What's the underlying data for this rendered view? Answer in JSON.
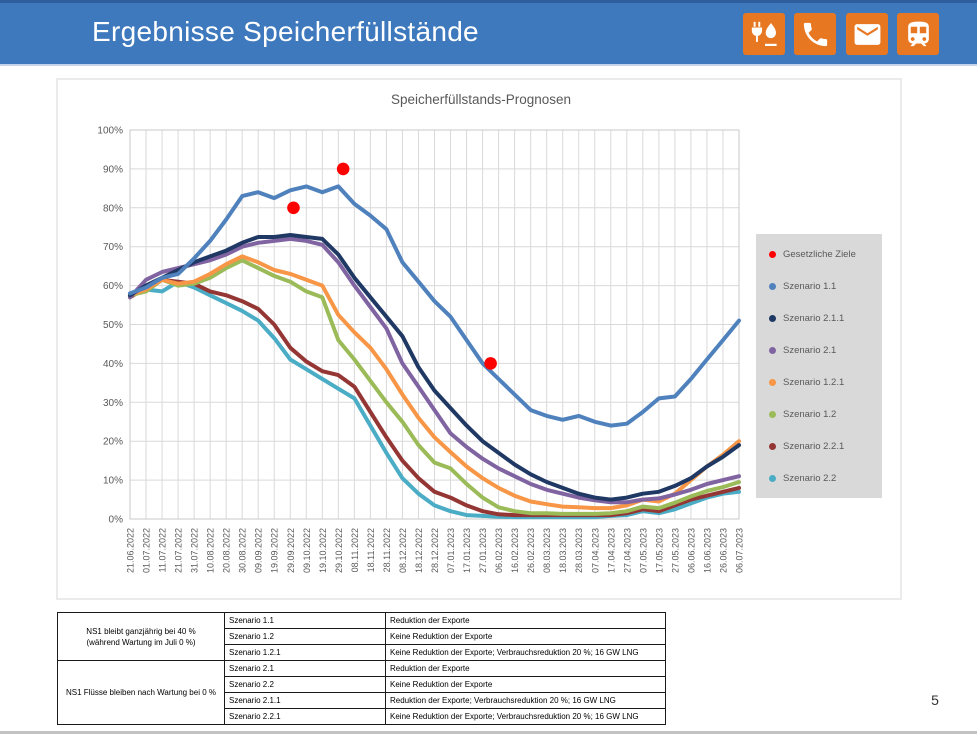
{
  "header": {
    "title": "Ergebnisse Speicherfüllstände",
    "bar_color": "#3E79BE",
    "icon_bg_color": "#E87722",
    "icons": [
      "energy-plug-flame-icon",
      "phone-icon",
      "mail-icon",
      "train-icon"
    ]
  },
  "chart_data": {
    "type": "line",
    "title": "Speicherfüllstands-Prognosen",
    "xlabel": "",
    "ylabel": "",
    "ylim": [
      0,
      100
    ],
    "grid": true,
    "legend_position": "right",
    "y_ticks": [
      "0%",
      "10%",
      "20%",
      "30%",
      "40%",
      "50%",
      "60%",
      "70%",
      "80%",
      "90%",
      "100%"
    ],
    "x": [
      "21.06.2022",
      "01.07.2022",
      "11.07.2022",
      "21.07.2022",
      "31.07.2022",
      "10.08.2022",
      "20.08.2022",
      "30.08.2022",
      "09.09.2022",
      "19.09.2022",
      "29.09.2022",
      "09.10.2022",
      "19.10.2022",
      "29.10.2022",
      "08.11.2022",
      "18.11.2022",
      "28.11.2022",
      "08.12.2022",
      "18.12.2022",
      "28.12.2022",
      "07.01.2023",
      "17.01.2023",
      "27.01.2023",
      "06.02.2023",
      "16.02.2023",
      "26.02.2023",
      "08.03.2023",
      "18.03.2023",
      "28.03.2023",
      "07.04.2023",
      "17.04.2023",
      "27.04.2023",
      "07.05.2023",
      "17.05.2023",
      "27.05.2023",
      "06.06.2023",
      "16.06.2023",
      "26.06.2023",
      "06.07.2023"
    ],
    "series": [
      {
        "name": "Szenario 1.1",
        "color": "#4F81BD",
        "values": [
          58,
          59.5,
          62,
          63,
          67,
          71.5,
          77,
          83,
          84,
          82.5,
          84.5,
          85.5,
          84,
          85.5,
          81,
          78,
          74.5,
          66,
          61,
          56,
          52,
          46,
          40,
          36,
          32,
          28,
          26.5,
          25.5,
          26.5,
          25,
          24,
          24.5,
          27.5,
          31,
          31.5,
          36,
          41,
          46,
          51
        ]
      },
      {
        "name": "Szenario 2.1.1",
        "color": "#1F3864",
        "values": [
          57.5,
          60,
          62,
          64,
          66,
          67.5,
          69,
          71,
          72.5,
          72.5,
          73,
          72.5,
          72,
          68,
          62,
          57,
          52,
          47,
          39,
          33,
          28.5,
          24,
          20,
          17,
          14,
          11.5,
          9.5,
          8,
          6.5,
          5.5,
          5,
          5.5,
          6.5,
          7,
          8.5,
          10.5,
          13.5,
          16,
          19
        ]
      },
      {
        "name": "Szenario 2.1",
        "color": "#8064A2",
        "values": [
          57,
          61.5,
          63.5,
          64.5,
          65.5,
          66.5,
          68,
          70,
          71,
          71.5,
          72,
          71.5,
          70.5,
          66,
          60,
          54.5,
          49,
          40,
          34,
          28,
          22,
          18.5,
          15.5,
          13,
          11,
          9,
          7.5,
          6.5,
          5.5,
          4.8,
          4.3,
          4.3,
          5,
          5.3,
          6.3,
          7.5,
          9,
          10,
          11
        ]
      },
      {
        "name": "Szenario 1.2.1",
        "color": "#F79646",
        "values": [
          57.5,
          59,
          61.5,
          60.5,
          61,
          63,
          65.5,
          67.5,
          66,
          64,
          63,
          61.5,
          60,
          52.5,
          48,
          44,
          38.5,
          32,
          26,
          21,
          17.2,
          13.5,
          10.5,
          8,
          6,
          4.5,
          3.8,
          3.2,
          3,
          2.8,
          2.8,
          3.5,
          5,
          4.5,
          6.5,
          10,
          13.5,
          16.5,
          20
        ]
      },
      {
        "name": "Szenario 1.2",
        "color": "#9BBB59",
        "values": [
          57.5,
          58.5,
          61.5,
          60,
          60.5,
          62,
          64.5,
          66.5,
          64.5,
          62.5,
          61,
          58.5,
          57,
          46,
          41,
          35.5,
          30,
          25,
          19,
          14.5,
          13,
          9,
          5.5,
          3,
          2,
          1.5,
          1.5,
          1.3,
          1.3,
          1.3,
          1.5,
          2,
          3.2,
          2.8,
          4.2,
          5.8,
          7.2,
          8.2,
          9.5
        ]
      },
      {
        "name": "Szenario 2.2.1",
        "color": "#943634",
        "values": [
          57,
          59.5,
          61.5,
          61,
          60.5,
          58.5,
          57.5,
          56,
          54,
          50,
          44,
          40.5,
          38,
          37,
          34,
          27.5,
          21,
          15,
          10.5,
          7,
          5.5,
          3.5,
          2,
          1.2,
          1,
          1,
          1,
          1,
          1,
          1,
          1,
          1.5,
          2.5,
          2,
          3.5,
          5,
          6,
          7,
          8
        ]
      },
      {
        "name": "Szenario 2.2",
        "color": "#4BACC6",
        "values": [
          57.5,
          59,
          58.5,
          61,
          59.5,
          57.5,
          55.5,
          53.5,
          51,
          46.5,
          41,
          38.5,
          36,
          33.5,
          31,
          24,
          17,
          10.5,
          6.5,
          3.5,
          2,
          1,
          0.8,
          0.6,
          0.5,
          0.5,
          0.5,
          0.5,
          0.5,
          0.5,
          0.8,
          1,
          2,
          1.5,
          2.5,
          4,
          5.5,
          6.5,
          7
        ]
      }
    ],
    "targets": {
      "name": "Gesetzliche Ziele",
      "color": "#FF0000",
      "points": [
        {
          "date": "01.10.2022",
          "x_index": 10.2,
          "value": 80
        },
        {
          "date": "01.11.2022",
          "x_index": 13.3,
          "value": 90
        },
        {
          "date": "01.02.2023",
          "x_index": 22.5,
          "value": 40
        }
      ]
    },
    "legend": [
      {
        "label": "Gesetzliche Ziele",
        "color": "#FF0000"
      },
      {
        "label": "Szenario 1.1",
        "color": "#4F81BD"
      },
      {
        "label": "Szenario 2.1.1",
        "color": "#1F3864"
      },
      {
        "label": "Szenario 2.1",
        "color": "#8064A2"
      },
      {
        "label": "Szenario 1.2.1",
        "color": "#F79646"
      },
      {
        "label": "Szenario 1.2",
        "color": "#9BBB59"
      },
      {
        "label": "Szenario 2.2.1",
        "color": "#943634"
      },
      {
        "label": "Szenario 2.2",
        "color": "#4BACC6"
      }
    ]
  },
  "table": {
    "groups": [
      {
        "label": "NS1 bleibt ganzjährig bei 40 %\n(während Wartung im Juli 0 %)",
        "rows": [
          {
            "scenario": "Szenario 1.1",
            "description": "Reduktion der Exporte"
          },
          {
            "scenario": "Szenario 1.2",
            "description": "Keine Reduktion der Exporte"
          },
          {
            "scenario": "Szenario 1.2.1",
            "description": "Keine Reduktion der Exporte; Verbrauchsreduktion 20 %; 16 GW LNG"
          }
        ]
      },
      {
        "label": "NS1 Flüsse bleiben nach Wartung bei 0 %",
        "rows": [
          {
            "scenario": "Szenario 2.1",
            "description": "Reduktion der Exporte"
          },
          {
            "scenario": "Szenario 2.2",
            "description": "Keine Reduktion der Exporte"
          },
          {
            "scenario": "Szenario 2.1.1",
            "description": "Reduktion der Exporte; Verbrauchsreduktion 20 %; 16 GW LNG"
          },
          {
            "scenario": "Szenario 2.2.1",
            "description": "Keine Reduktion der Exporte; Verbrauchsreduktion 20 %; 16 GW LNG"
          }
        ]
      }
    ]
  },
  "footer": {
    "page_number": "5"
  }
}
